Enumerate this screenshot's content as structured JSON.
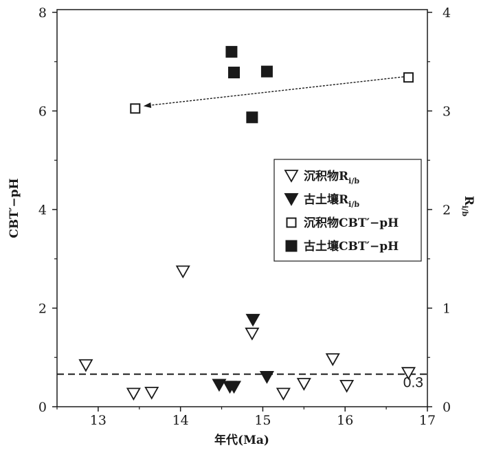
{
  "chart_data": {
    "type": "scatter",
    "xlabel": "年代(Ma)",
    "ylabel_left": "CBT′−pH",
    "ylabel_right": "R",
    "ylabel_right_sub": "i/b",
    "xlim": [
      12.5,
      17
    ],
    "ylim_left": [
      0,
      8
    ],
    "ylim_right": [
      0,
      4
    ],
    "x_ticks": [
      13,
      14,
      15,
      16,
      17
    ],
    "y_left_ticks": [
      0,
      2,
      4,
      6,
      8
    ],
    "y_right_ticks": [
      0,
      1,
      2,
      3,
      4
    ],
    "threshold": {
      "value": 0.33,
      "axis": "right",
      "label": "0.3"
    },
    "arrow": {
      "from": [
        16.75,
        3.35
      ],
      "to": [
        13.55,
        3.05
      ],
      "axis": "right"
    },
    "legend": {
      "position": "center-right"
    },
    "series": [
      {
        "name": "沉积物R",
        "name_sub": "i/b",
        "marker": "triangle-down-open",
        "axis": "right",
        "points": [
          [
            12.85,
            0.42
          ],
          [
            13.43,
            0.13
          ],
          [
            13.65,
            0.14
          ],
          [
            14.03,
            1.37
          ],
          [
            14.87,
            0.74
          ],
          [
            15.25,
            0.13
          ],
          [
            15.5,
            0.23
          ],
          [
            15.85,
            0.48
          ],
          [
            16.02,
            0.21
          ],
          [
            16.77,
            0.34
          ]
        ]
      },
      {
        "name": "古土壤R",
        "name_sub": "i/b",
        "marker": "triangle-down-filled",
        "axis": "right",
        "points": [
          [
            14.47,
            0.22
          ],
          [
            14.6,
            0.2
          ],
          [
            14.65,
            0.2
          ],
          [
            14.88,
            0.88
          ],
          [
            15.05,
            0.3
          ]
        ]
      },
      {
        "name": "沉积物CBT′−pH",
        "marker": "square-open",
        "axis": "left",
        "points": [
          [
            13.45,
            6.05
          ],
          [
            16.77,
            6.68
          ]
        ]
      },
      {
        "name": "古土壤CBT′−pH",
        "marker": "square-filled",
        "axis": "left",
        "points": [
          [
            14.62,
            7.2
          ],
          [
            14.65,
            6.78
          ],
          [
            15.05,
            6.8
          ],
          [
            14.87,
            5.87
          ]
        ]
      }
    ]
  }
}
